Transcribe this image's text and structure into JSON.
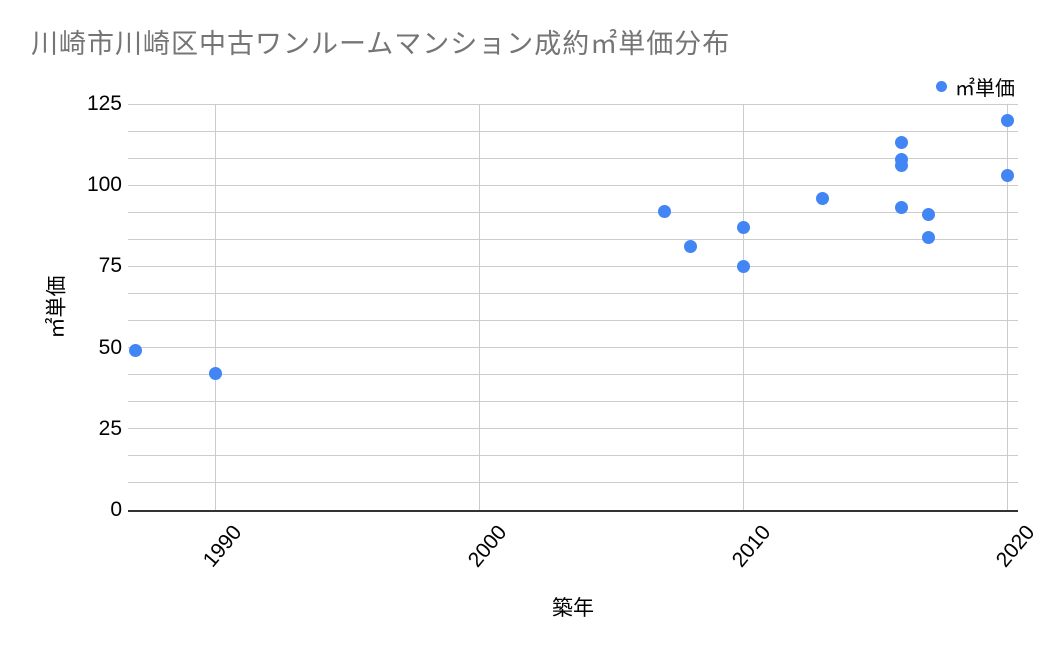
{
  "chart_data": {
    "type": "scatter",
    "title": "川崎市川崎区中古ワンルームマンション成約㎡単価分布",
    "xlabel": "築年",
    "ylabel": "㎡単価",
    "legend": {
      "label": "㎡単価",
      "position": "top-right",
      "marker_color": "#4285f4"
    },
    "point_color": "#4285f4",
    "x_ticks": [
      1990,
      2000,
      2010,
      2020
    ],
    "y_ticks": [
      0,
      25,
      50,
      75,
      100,
      125
    ],
    "xlim": [
      1986.7,
      2020.4
    ],
    "ylim": [
      0,
      125
    ],
    "y_minor_step": 8.3333,
    "grid": {
      "horizontal": "minor-and-major",
      "vertical": "major-only"
    },
    "points": [
      {
        "x": 1987,
        "y": 49
      },
      {
        "x": 1990,
        "y": 42
      },
      {
        "x": 2007,
        "y": 92
      },
      {
        "x": 2008,
        "y": 81
      },
      {
        "x": 2010,
        "y": 87
      },
      {
        "x": 2010,
        "y": 75
      },
      {
        "x": 2013,
        "y": 96
      },
      {
        "x": 2016,
        "y": 113
      },
      {
        "x": 2016,
        "y": 108
      },
      {
        "x": 2016,
        "y": 106
      },
      {
        "x": 2016,
        "y": 93
      },
      {
        "x": 2017,
        "y": 91
      },
      {
        "x": 2017,
        "y": 84
      },
      {
        "x": 2020,
        "y": 120
      },
      {
        "x": 2020,
        "y": 103
      }
    ],
    "colors": {
      "title_text": "#757575",
      "axis_text": "#000000",
      "gridline": "#cccccc",
      "axis_line": "#333333",
      "background": "#ffffff"
    }
  }
}
